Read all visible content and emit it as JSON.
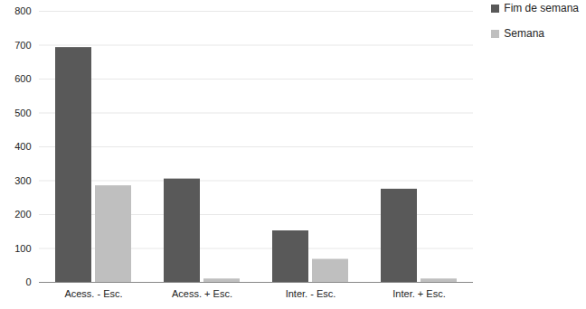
{
  "chart_data": {
    "type": "bar",
    "categories": [
      "Acess. - Esc.",
      "Acess. + Esc.",
      "Inter. - Esc.",
      "Inter. + Esc."
    ],
    "series": [
      {
        "name": "Fim de semana",
        "color": "#595959",
        "values": [
          693,
          305,
          152,
          275
        ]
      },
      {
        "name": "Semana",
        "color": "#bfbfbf",
        "values": [
          285,
          10,
          68,
          10
        ]
      }
    ],
    "ylim": [
      0,
      800
    ],
    "yticks": [
      0,
      100,
      200,
      300,
      400,
      500,
      600,
      700,
      800
    ],
    "grid": true,
    "legend": "top-right"
  }
}
